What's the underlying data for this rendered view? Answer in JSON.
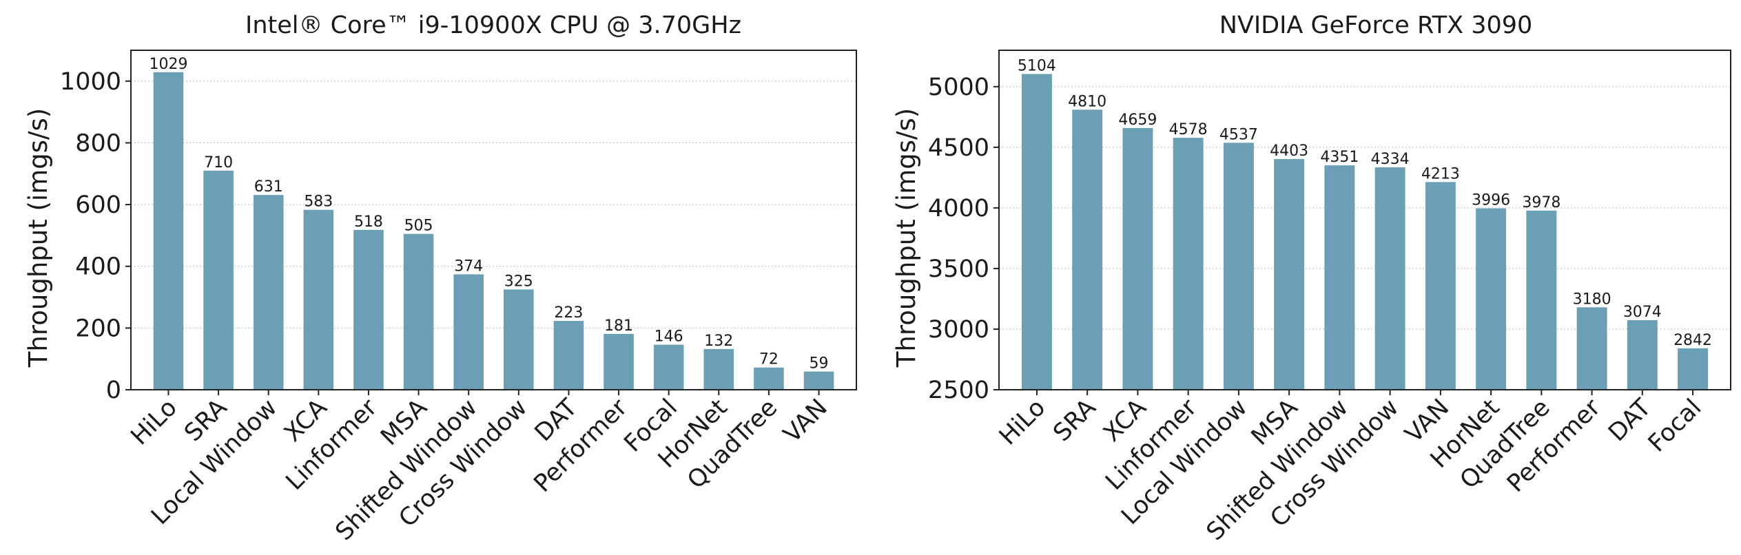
{
  "chart_data": [
    {
      "type": "bar",
      "title": "Intel® Core™ i9-10900X CPU @ 3.70GHz",
      "xlabel": "",
      "ylabel": "Throughput (imgs/s)",
      "ylim": [
        0,
        1100
      ],
      "yticks": [
        0,
        200,
        400,
        600,
        800,
        1000
      ],
      "grid": true,
      "bar_color": "#6a9fb5",
      "categories": [
        "HiLo",
        "SRA",
        "Local Window",
        "XCA",
        "Linformer",
        "MSA",
        "Shifted Window",
        "Cross Window",
        "DAT",
        "Performer",
        "Focal",
        "HorNet",
        "QuadTree",
        "VAN"
      ],
      "values": [
        1029,
        710,
        631,
        583,
        518,
        505,
        374,
        325,
        223,
        181,
        146,
        132,
        72,
        59
      ]
    },
    {
      "type": "bar",
      "title": "NVIDIA GeForce RTX 3090",
      "xlabel": "",
      "ylabel": "Throughput (imgs/s)",
      "ylim": [
        2500,
        5300
      ],
      "yticks": [
        2500,
        3000,
        3500,
        4000,
        4500,
        5000
      ],
      "grid": true,
      "bar_color": "#6a9fb5",
      "categories": [
        "HiLo",
        "SRA",
        "XCA",
        "Linformer",
        "Local Window",
        "MSA",
        "Shifted Window",
        "Cross Window",
        "VAN",
        "HorNet",
        "QuadTree",
        "Performer",
        "DAT",
        "Focal"
      ],
      "values": [
        5104,
        4810,
        4659,
        4578,
        4537,
        4403,
        4351,
        4334,
        4213,
        3996,
        3978,
        3180,
        3074,
        2842
      ]
    }
  ]
}
